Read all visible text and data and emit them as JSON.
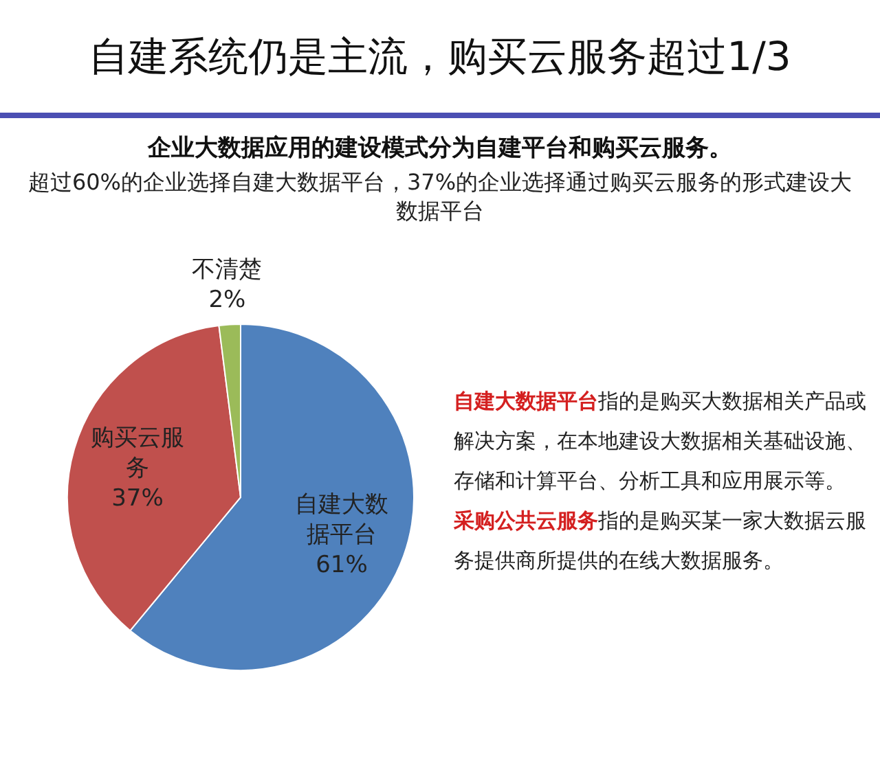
{
  "chart_data": {
    "type": "pie",
    "title": "自建系统仍是主流，购买云服务超过1/3",
    "subtitle": "企业大数据应用的建设模式分为自建平台和购买云服务。",
    "categories": [
      "自建大数据平台",
      "购买云服务",
      "不清楚"
    ],
    "values": [
      61,
      37,
      2
    ],
    "colors": [
      "#4f81bd",
      "#c0504d",
      "#9bbb59"
    ],
    "value_labels": [
      "61%",
      "37%",
      "2%"
    ],
    "annotations": [
      "超过60%的企业选择自建大数据平台，37%的企业选择通过购买云服务的形式建设大数据平台",
      "**自建大数据平台**指的是购买大数据相关产品或解决方案，在本地建设大数据相关基础设施、存储和计算平台、分析工具和应用展示等。",
      "**采购公共云服务**指的是购买某一家大数据云服务提供商所提供的在线大数据服务。"
    ]
  }
}
